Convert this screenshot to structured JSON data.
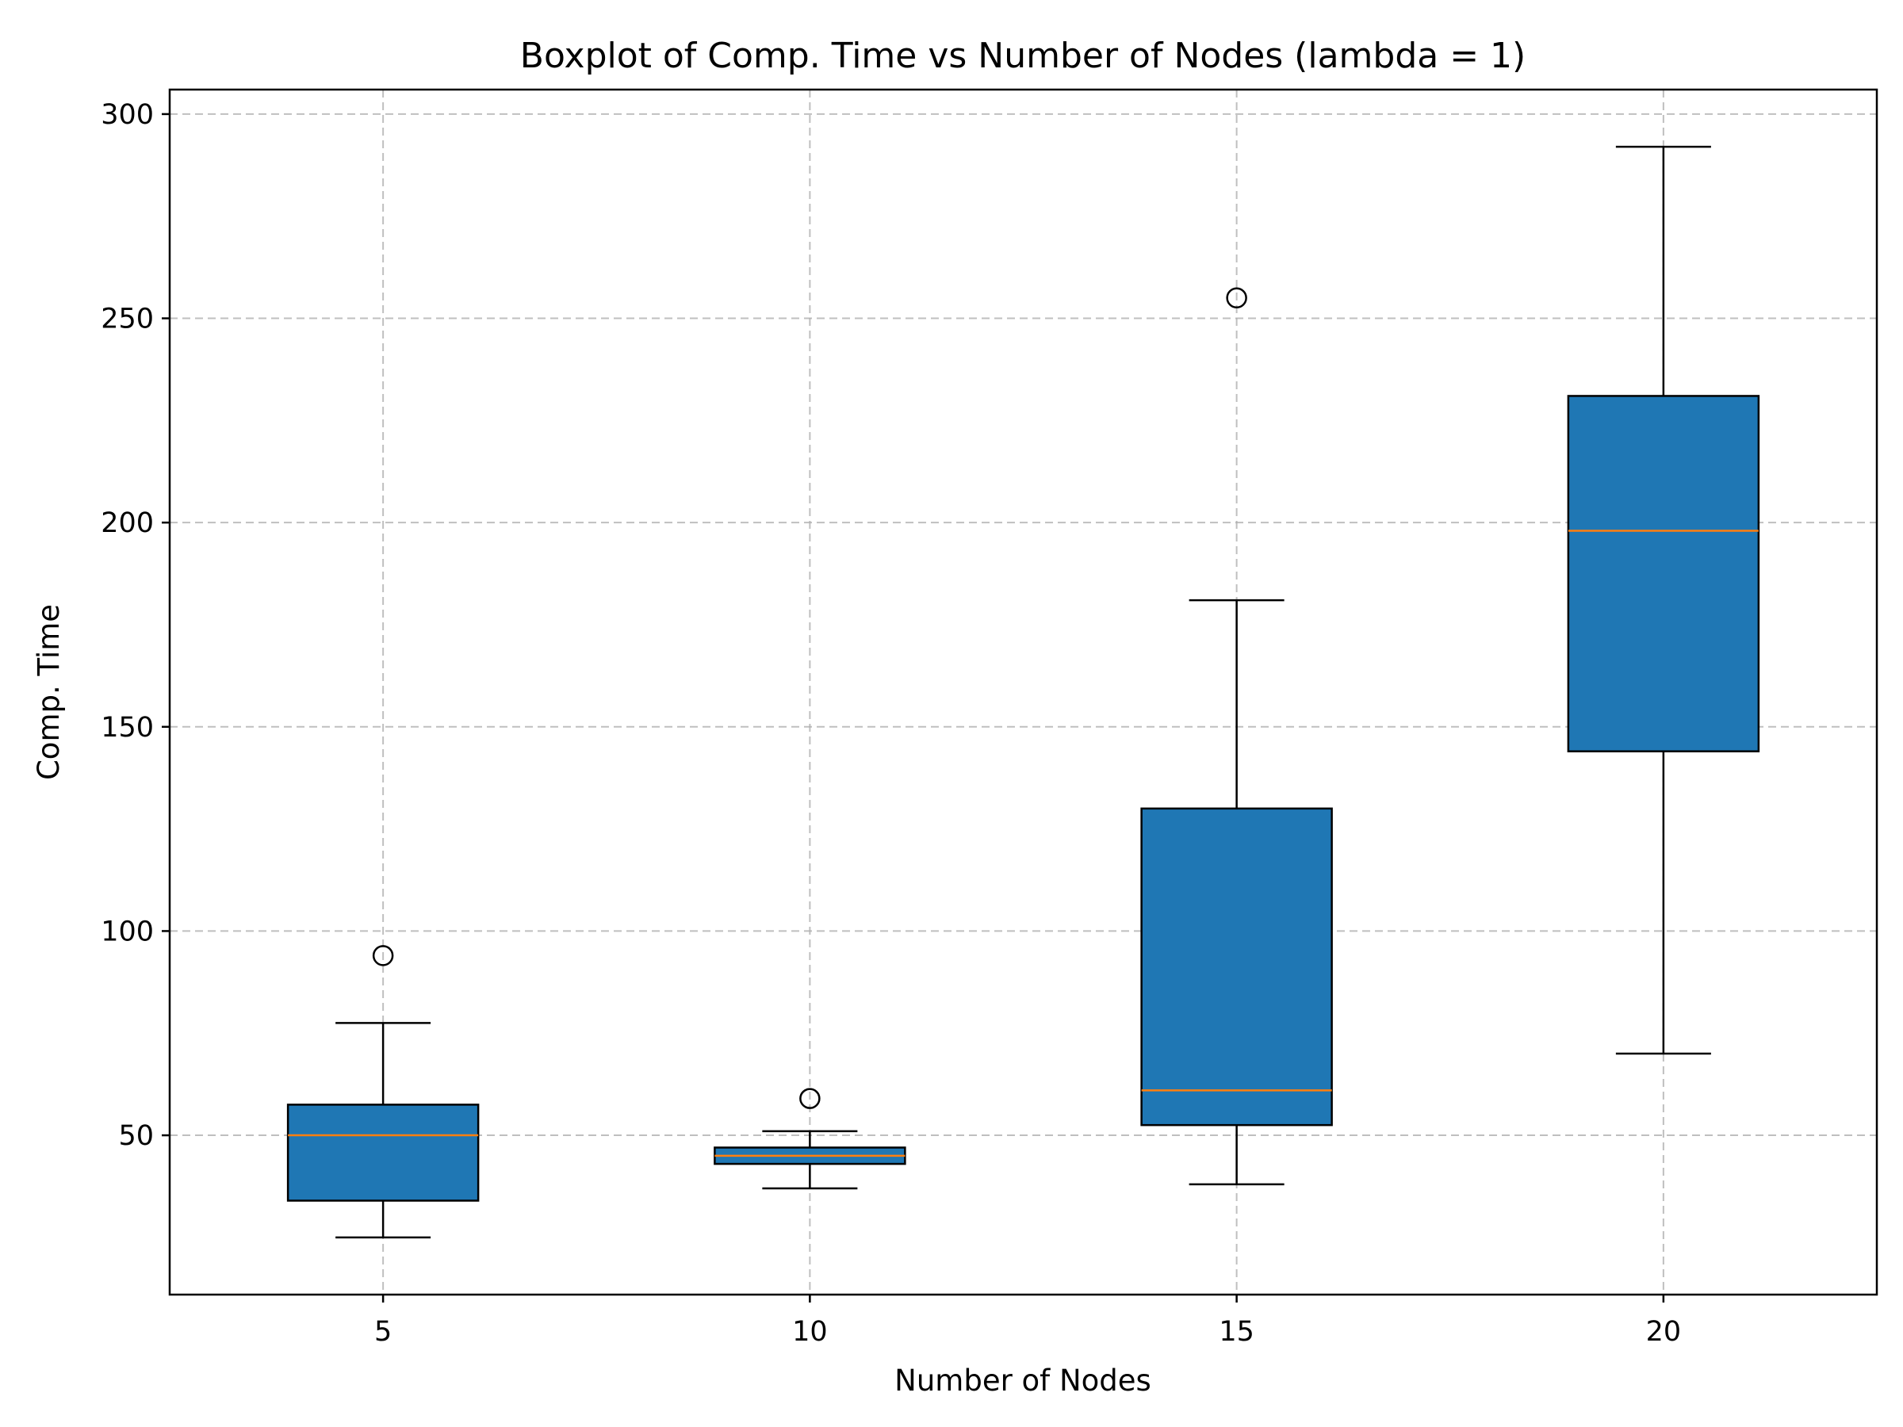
{
  "chart_data": {
    "type": "boxplot",
    "title": "Boxplot of Comp. Time vs Number of Nodes (lambda = 1)",
    "xlabel": "Number of Nodes",
    "ylabel": "Comp. Time",
    "categories": [
      "5",
      "10",
      "15",
      "20"
    ],
    "x_ticks": [
      "5",
      "10",
      "15",
      "20"
    ],
    "y_ticks": [
      50,
      100,
      150,
      200,
      250,
      300
    ],
    "ylim": [
      11,
      306
    ],
    "grid": true,
    "box_color": "#1f77b4",
    "median_color": "#ff7f0e",
    "boxes": [
      {
        "category": "5",
        "whisker_low": 25,
        "q1": 34,
        "median": 50,
        "q3": 57.5,
        "whisker_high": 77.5,
        "outliers": [
          94
        ]
      },
      {
        "category": "10",
        "whisker_low": 37,
        "q1": 43,
        "median": 45,
        "q3": 47,
        "whisker_high": 51,
        "outliers": [
          59
        ]
      },
      {
        "category": "15",
        "whisker_low": 38,
        "q1": 52.5,
        "median": 61,
        "q3": 130,
        "whisker_high": 181,
        "outliers": [
          255
        ]
      },
      {
        "category": "20",
        "whisker_low": 70,
        "q1": 144,
        "median": 198,
        "q3": 231,
        "whisker_high": 292,
        "outliers": []
      }
    ]
  }
}
